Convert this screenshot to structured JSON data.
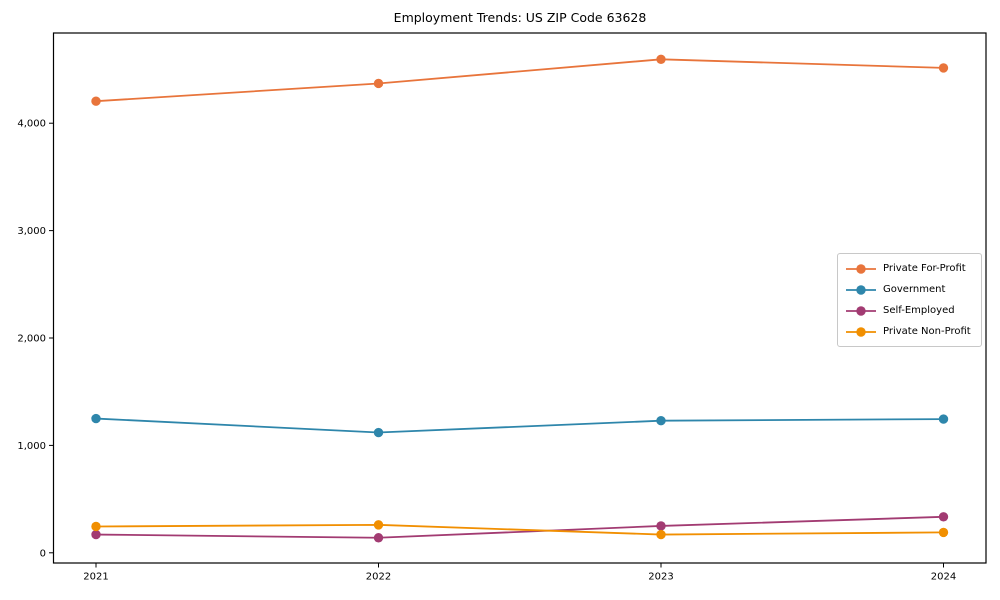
{
  "chart_data": {
    "type": "line",
    "title": "Employment Trends: US ZIP Code 63628",
    "xlabel": "",
    "ylabel": "",
    "categories": [
      "2021",
      "2022",
      "2023",
      "2024"
    ],
    "series": [
      {
        "name": "Private For-Profit",
        "color": "#e8743b",
        "values": [
          4205,
          4370,
          4595,
          4515
        ]
      },
      {
        "name": "Government",
        "color": "#2e86ab",
        "values": [
          1250,
          1120,
          1230,
          1245
        ]
      },
      {
        "name": "Self-Employed",
        "color": "#a23b72",
        "values": [
          170,
          140,
          250,
          335
        ]
      },
      {
        "name": "Private Non-Profit",
        "color": "#f18f01",
        "values": [
          245,
          260,
          170,
          190
        ]
      }
    ],
    "yticks": {
      "values": [
        0,
        1000,
        2000,
        3000,
        4000
      ],
      "labels": [
        "0",
        "1,000",
        "2,000",
        "3,000",
        "4,000"
      ]
    },
    "ylim": [
      -95,
      4840
    ],
    "grid": false,
    "legend_position": "right-middle",
    "marker": "circle",
    "background": "#ffffff",
    "spine_color": "#000000"
  }
}
